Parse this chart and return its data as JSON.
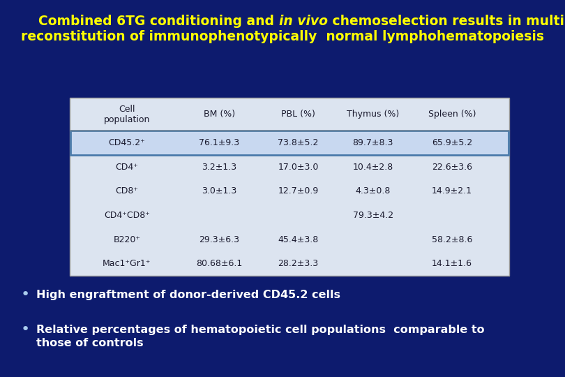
{
  "title_color": "#FFFF00",
  "bg_color": "#0d1b6e",
  "table_bg": "#dce4f0",
  "table_header_line_color": "#888888",
  "highlight_row_color": "#c8d8f0",
  "highlight_border": "#4a7aaa",
  "header_row": [
    "Cell\npopulation",
    "BM (%)",
    "PBL (%)",
    "Thymus (%)",
    "Spleen (%)"
  ],
  "rows": [
    [
      "CD45.2⁺",
      "76.1±9.3",
      "73.8±5.2",
      "89.7±8.3",
      "65.9±5.2"
    ],
    [
      "CD4⁺",
      "3.2±1.3",
      "17.0±3.0",
      "10.4±2.8",
      "22.6±3.6"
    ],
    [
      "CD8⁺",
      "3.0±1.3",
      "12.7±0.9",
      "4.3±0.8",
      "14.9±2.1"
    ],
    [
      "CD4⁺CD8⁺",
      "",
      "",
      "79.3±4.2",
      ""
    ],
    [
      "B220⁺",
      "29.3±6.3",
      "45.4±3.8",
      "",
      "58.2±8.6"
    ],
    [
      "Mac1⁺Gr1⁺",
      "80.68±6.1",
      "28.2±3.3",
      "",
      "14.1±1.6"
    ]
  ],
  "bullet_color": "#aaccee",
  "bullet_text_color": "#FFFFFF",
  "bullet1": "High engraftment of donor-derived CD45.2 cells",
  "bullet2_line1": "Relative percentages of hematopoietic cell populations  comparable to",
  "bullet2_line2": "those of controls",
  "text_color_table": "#1a1a2e",
  "font_family": "DejaVu Sans"
}
